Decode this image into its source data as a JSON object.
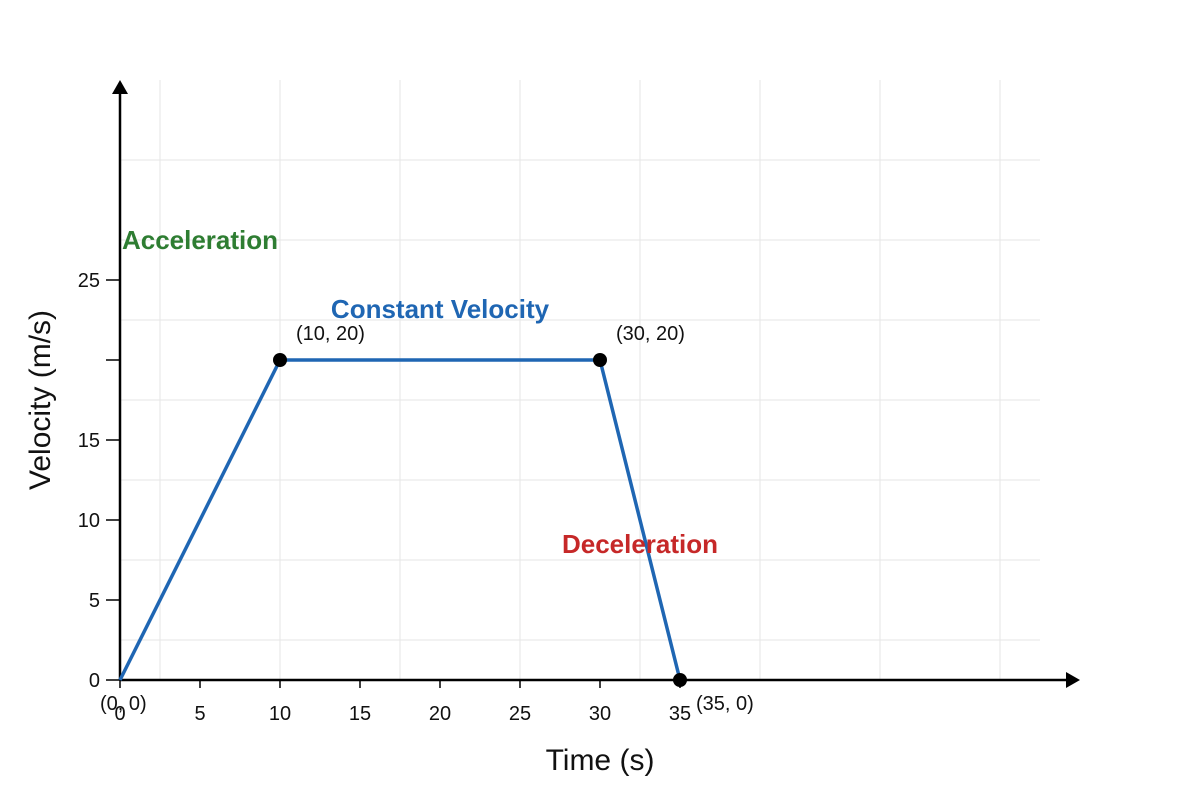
{
  "chart_data": {
    "type": "line",
    "title": "",
    "xlabel": "Time (s)",
    "ylabel": "Velocity (m/s)",
    "xlim": [
      0,
      60
    ],
    "ylim": [
      0,
      37.5
    ],
    "grid": true,
    "x_ticks": [
      0,
      5,
      10,
      15,
      20,
      25,
      30,
      35
    ],
    "y_ticks": [
      {
        "value": 0,
        "label": "0"
      },
      {
        "value": 5,
        "label": "5"
      },
      {
        "value": 10,
        "label": "10"
      },
      {
        "value": 15,
        "label": "15"
      },
      {
        "value": 20,
        "label": ""
      },
      {
        "value": 25,
        "label": "25"
      }
    ],
    "series": [
      {
        "color": "#1f66b3",
        "x": [
          0,
          10,
          30,
          35
        ],
        "y": [
          0,
          20,
          20,
          0
        ]
      }
    ],
    "point_labels": [
      {
        "x": 0,
        "y": 0,
        "text": "(0, 0)"
      },
      {
        "x": 10,
        "y": 20,
        "text": "(10, 20)"
      },
      {
        "x": 30,
        "y": 20,
        "text": "(30, 20)"
      },
      {
        "x": 35,
        "y": 0,
        "text": "(35, 0)"
      }
    ],
    "marked_points": [
      [
        10,
        20
      ],
      [
        30,
        20
      ],
      [
        35,
        0
      ]
    ],
    "annotations": [
      {
        "text": "Acceleration",
        "color": "#2e7d32",
        "x": 5,
        "y": 27.5
      },
      {
        "text": "Constant Velocity",
        "color": "#1f66b3",
        "x": 20,
        "y": 23.2
      },
      {
        "text": "Deceleration",
        "color": "#c62828",
        "x": 32.5,
        "y": 8.5
      }
    ]
  }
}
